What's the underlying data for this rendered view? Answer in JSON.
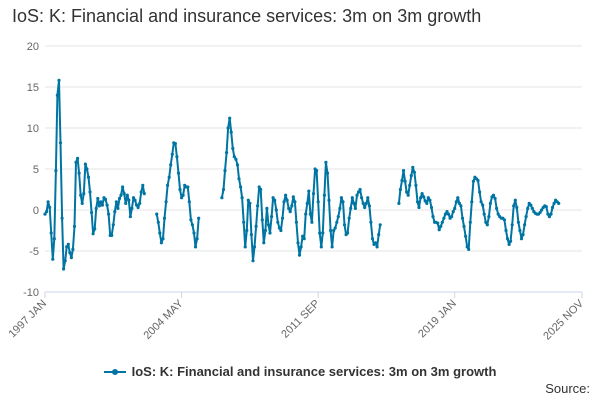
{
  "title": "IoS: K: Financial and insurance services: 3m on 3m growth",
  "legend_label": "IoS: K: Financial and insurance services: 3m on 3m growth",
  "source_label": "Source:",
  "colors": {
    "series": "#0075a3",
    "grid": "#e6e6e6",
    "axis": "#ccd6eb",
    "text": "#666666"
  },
  "chart_data": {
    "type": "line",
    "title": "IoS: K: Financial and insurance services: 3m on 3m growth",
    "xlabel": "",
    "ylabel": "",
    "ylim": [
      -10,
      20
    ],
    "yticks": [
      -10,
      -5,
      0,
      5,
      10,
      15,
      20
    ],
    "xlim": [
      "1997-01",
      "2025-11"
    ],
    "xtick_labels": [
      {
        "date": "1997-01",
        "label": "1997 JAN"
      },
      {
        "date": "2004-05",
        "label": "2004 MAY"
      },
      {
        "date": "2011-09",
        "label": "2011 SEP"
      },
      {
        "date": "2019-01",
        "label": "2019 JAN"
      },
      {
        "date": "2025-11",
        "label": "2025 NOV"
      }
    ],
    "grid": true,
    "legend": "bottom",
    "series": [
      {
        "name": "IoS: K: Financial and insurance services: 3m on 3m growth",
        "segments": [
          {
            "start": "1997-01",
            "values": [
              -0.5,
              -0.2,
              1.0,
              0.3,
              -2.8,
              -6.0,
              -3.5,
              4.8,
              14.0,
              15.8,
              8.2,
              -1.0,
              -7.2,
              -6.2,
              -4.5,
              -4.2,
              -5.2,
              -5.8,
              -4.8,
              -2.0,
              5.8,
              6.3,
              4.5,
              1.8,
              0.8,
              2.0,
              5.6,
              5.0,
              4.0,
              2.2,
              -0.3,
              -2.9,
              -2.3,
              0.2,
              1.4,
              0.5,
              1.0,
              0.6,
              1.5,
              1.3,
              0.6,
              -0.5,
              -3.1,
              -3.1,
              -1.8,
              -0.2,
              1.0,
              0.2,
              1.4,
              1.8,
              2.8,
              2.0,
              0.8,
              1.8,
              1.2,
              -0.8,
              0.2,
              1.5,
              1.2,
              0.6,
              0.3,
              0.8,
              2.2,
              3.0,
              2.0
            ]
          },
          {
            "start": "2003-01",
            "values": [
              -0.5,
              -1.5,
              -2.8,
              -4.0,
              -3.5,
              -1.0,
              1.0,
              3.0,
              4.0,
              5.5,
              6.8,
              8.2,
              8.1,
              6.5,
              4.5,
              2.5,
              1.5,
              1.8,
              3.0,
              2.8,
              2.8,
              1.0,
              -1.2,
              -1.8,
              -2.8,
              -4.5,
              -3.5,
              -1.0
            ]
          },
          {
            "start": "2006-07",
            "values": [
              1.5,
              2.5,
              4.8,
              7.0,
              10.0,
              11.2,
              9.5,
              7.5,
              6.5,
              6.2,
              5.5,
              3.8,
              2.8,
              1.5,
              -1.5,
              -4.5,
              -2.5,
              1.2,
              0.8,
              -3.0,
              -6.2,
              -4.5,
              -2.0,
              0.5,
              2.8,
              2.5,
              -1.2,
              -4.0,
              -2.5,
              0.2,
              -1.8,
              -2.8,
              -0.8,
              1.5,
              1.2,
              0.0,
              -1.5,
              -2.2,
              -2.5,
              -1.0,
              1.0,
              1.8,
              1.2,
              0.2,
              -0.2,
              0.5,
              1.6,
              1.0,
              -1.5,
              -4.0,
              -5.5,
              -4.5,
              -3.2,
              -3.5,
              -0.5,
              0.8,
              2.3,
              -0.5,
              -1.5,
              2.0,
              5.0,
              4.8,
              1.0,
              -2.8,
              -4.5,
              -2.8,
              1.8,
              5.8,
              4.5,
              1.2,
              -2.5,
              -4.5,
              -2.5,
              -2.2,
              -1.5,
              -0.8,
              0.2,
              1.5,
              1.0,
              -1.8,
              -3.0,
              -2.8,
              -1.0,
              0.2,
              1.5,
              0.8,
              0.2,
              1.8,
              2.2,
              2.5,
              1.5,
              0.8,
              0.3,
              0.8,
              1.5,
              0.5,
              -1.5,
              -3.5,
              -4.2,
              -4.0,
              -4.5,
              -3.0,
              -1.8
            ]
          },
          {
            "start": "2016-01",
            "values": [
              0.8,
              2.5,
              3.6,
              4.8,
              3.5,
              2.2,
              1.8,
              3.0,
              4.2,
              5.2,
              4.6,
              3.0,
              1.0,
              0.3,
              1.5,
              2.0,
              1.6,
              1.1,
              0.8,
              1.5,
              1.2,
              0.3,
              -0.8,
              -1.5,
              -1.5,
              -1.6,
              -2.4,
              -2.0,
              -1.5,
              -1.0,
              -0.5,
              -0.2,
              -0.5,
              -1.0,
              -0.8,
              -0.2,
              0.2,
              1.0,
              1.5,
              0.8,
              0.5,
              -1.0,
              -2.0,
              -3.2,
              -4.5,
              -4.8,
              -1.5,
              1.0,
              3.5,
              4.0,
              3.8,
              3.6,
              2.2,
              1.0,
              0.6,
              -0.5,
              -1.5,
              -1.8,
              -0.8,
              0.8,
              1.6,
              1.8,
              1.4,
              0.2,
              -0.5,
              -0.8,
              -1.0,
              -1.0,
              -1.2,
              -2.5,
              -3.5,
              -4.2,
              -3.8,
              -1.8,
              0.5,
              1.2,
              0.3,
              -1.5,
              -2.5,
              -3.5,
              -3.0,
              -1.8,
              -0.8,
              0.2,
              0.8,
              0.6,
              0.2,
              -0.2,
              -0.4,
              -0.5,
              -0.5,
              -0.3,
              0.0,
              0.3,
              0.5,
              0.4,
              -0.5,
              -0.8,
              -0.5,
              0.3,
              0.8,
              1.2,
              1.0,
              0.8
            ]
          }
        ]
      }
    ]
  }
}
